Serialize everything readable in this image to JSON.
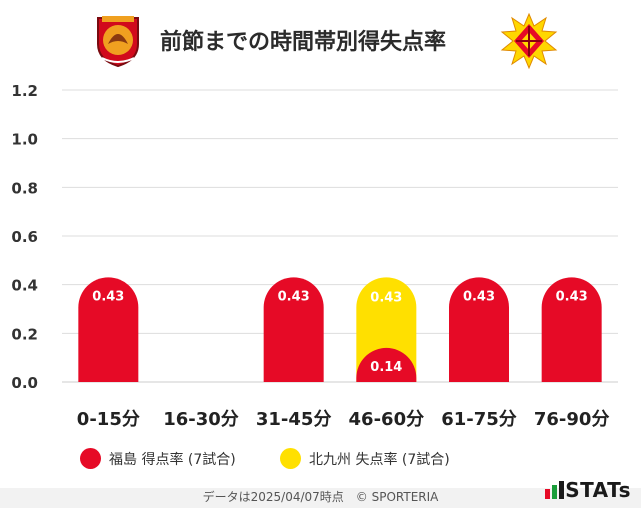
{
  "header": {
    "title": "前節までの時間帯別得失点率",
    "left_logo": "fukushima-united-crest",
    "right_logo": "kitakyushu-crest"
  },
  "colors": {
    "series_a": "#e60a26",
    "series_b": "#ffe000",
    "grid": "#dddddd",
    "baseline": "#cccccc"
  },
  "chart_data": {
    "type": "bar",
    "categories": [
      "0-15分",
      "16-30分",
      "31-45分",
      "46-60分",
      "61-75分",
      "76-90分"
    ],
    "series": [
      {
        "name": "福島 得点率 (7試合)",
        "values": [
          0.43,
          0,
          0.43,
          0.14,
          0.43,
          0.43
        ]
      },
      {
        "name": "北九州 失点率 (7試合)",
        "values": [
          0,
          0,
          0,
          0.43,
          0,
          0
        ]
      }
    ],
    "y_ticks": [
      "0.0",
      "0.2",
      "0.4",
      "0.6",
      "0.8",
      "1.0",
      "1.2"
    ],
    "ylim": [
      0,
      1.2
    ],
    "overlapping_bars": true,
    "grid": true
  },
  "legend": {
    "item_a": "福島 得点率 (7試合)",
    "item_b": "北九州 失点率 (7試合)"
  },
  "footer": {
    "text": "データは2025/04/07時点　© SPORTERIA",
    "brand": "STATs"
  }
}
